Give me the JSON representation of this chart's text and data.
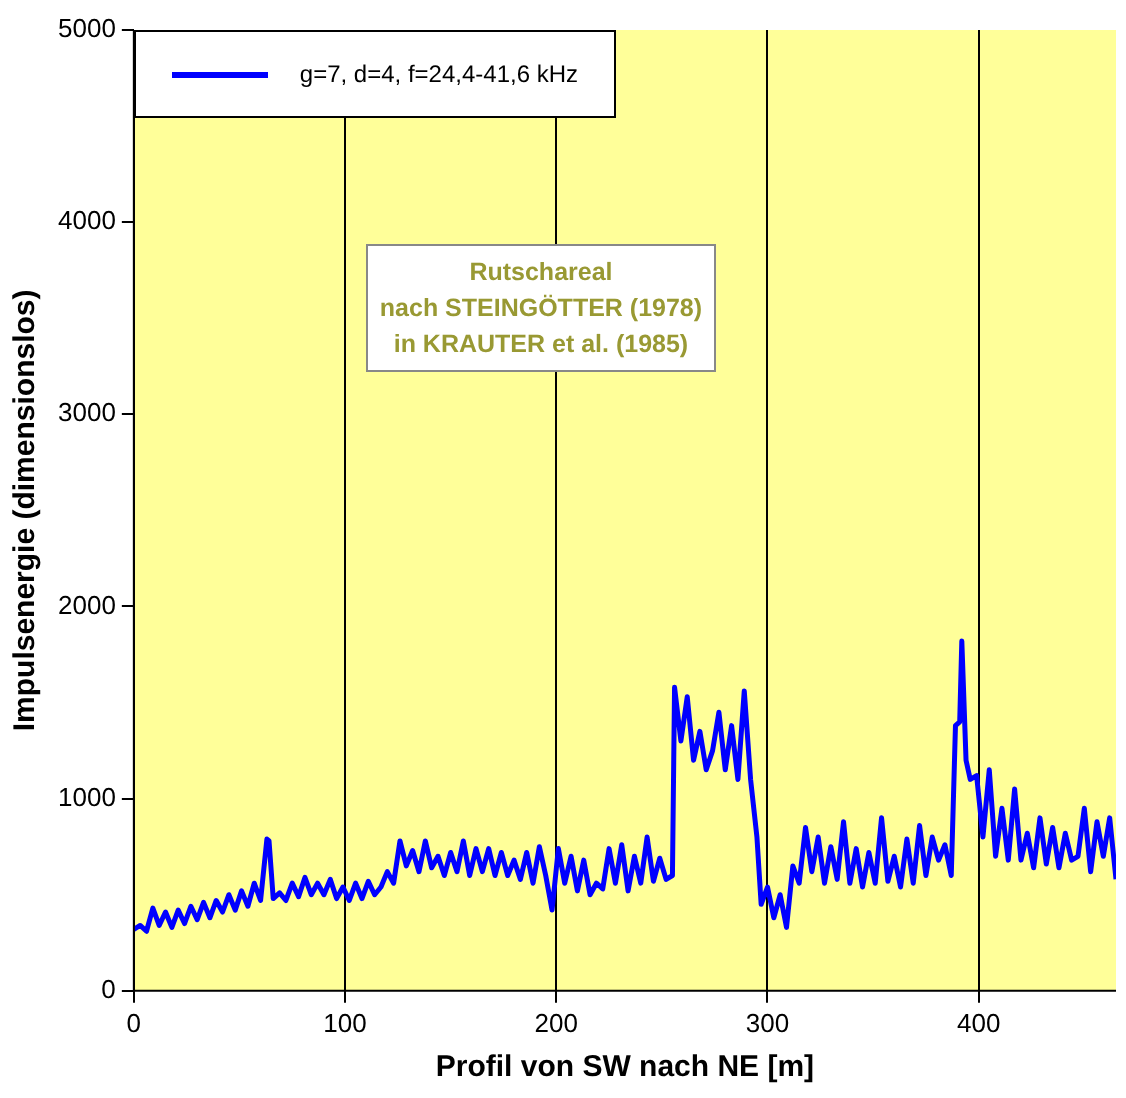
{
  "chart_data": {
    "type": "line",
    "xlabel": "Profil von SW nach NE [m]",
    "ylabel": "Impulsenergie (dimensionslos)",
    "annotations": [
      "Rutschareal\nnach STEINGÖTTER (1978)\nin KRAUTER et al. (1985)"
    ],
    "x": [
      0,
      3,
      6,
      9,
      12,
      15,
      18,
      21,
      24,
      27,
      30,
      33,
      36,
      39,
      42,
      45,
      48,
      51,
      54,
      57,
      60,
      63,
      64,
      66,
      69,
      72,
      75,
      78,
      81,
      84,
      87,
      90,
      93,
      96,
      99,
      102,
      105,
      108,
      111,
      114,
      117,
      120,
      123,
      126,
      129,
      132,
      135,
      138,
      141,
      144,
      147,
      150,
      153,
      156,
      159,
      162,
      165,
      168,
      171,
      174,
      177,
      180,
      183,
      186,
      189,
      192,
      195,
      198,
      201,
      204,
      207,
      210,
      213,
      216,
      219,
      222,
      225,
      228,
      231,
      234,
      237,
      240,
      243,
      246,
      249,
      252,
      255,
      256,
      259,
      262,
      265,
      268,
      271,
      274,
      277,
      280,
      283,
      286,
      289,
      292,
      295,
      297,
      300,
      303,
      306,
      309,
      312,
      315,
      318,
      321,
      324,
      327,
      330,
      333,
      336,
      339,
      342,
      345,
      348,
      351,
      354,
      357,
      360,
      363,
      366,
      369,
      372,
      375,
      378,
      381,
      384,
      387,
      389,
      391,
      392,
      394,
      396,
      399,
      402,
      405,
      408,
      411,
      414,
      417,
      420,
      423,
      426,
      429,
      432,
      435,
      438,
      441,
      444,
      447,
      450,
      453,
      456,
      459,
      462,
      465
    ],
    "series": [
      {
        "name": "g=7, d=4, f=24,4-41,6 kHz",
        "color": "#0000ff",
        "values": [
          320,
          340,
          310,
          430,
          340,
          410,
          330,
          420,
          350,
          440,
          370,
          460,
          380,
          470,
          410,
          500,
          420,
          520,
          440,
          560,
          470,
          790,
          780,
          480,
          510,
          470,
          560,
          490,
          590,
          500,
          560,
          500,
          580,
          480,
          540,
          470,
          560,
          480,
          570,
          500,
          540,
          620,
          560,
          780,
          650,
          730,
          620,
          780,
          640,
          700,
          600,
          720,
          620,
          780,
          600,
          740,
          620,
          740,
          600,
          720,
          600,
          680,
          580,
          720,
          560,
          750,
          600,
          420,
          740,
          560,
          700,
          520,
          680,
          500,
          560,
          530,
          740,
          560,
          760,
          520,
          700,
          560,
          800,
          570,
          690,
          580,
          600,
          1580,
          1300,
          1530,
          1200,
          1350,
          1150,
          1250,
          1450,
          1150,
          1380,
          1100,
          1560,
          1100,
          800,
          450,
          540,
          380,
          500,
          330,
          650,
          560,
          850,
          620,
          800,
          560,
          750,
          580,
          880,
          560,
          740,
          540,
          720,
          560,
          900,
          570,
          700,
          540,
          790,
          560,
          860,
          600,
          800,
          680,
          760,
          600,
          1380,
          1400,
          1820,
          1200,
          1100,
          1120,
          800,
          1150,
          700,
          950,
          680,
          1050,
          680,
          820,
          640,
          900,
          660,
          850,
          640,
          820,
          680,
          700,
          950,
          620,
          880,
          700,
          900,
          580
        ]
      }
    ],
    "xlim": [
      0,
      465
    ],
    "ylim": [
      0,
      5000
    ],
    "xticks": [
      0,
      100,
      200,
      300,
      400
    ],
    "yticks": [
      0,
      1000,
      2000,
      3000,
      4000,
      5000
    ],
    "grid": "x",
    "legend": "top left",
    "marker": "none",
    "line_style": "solid"
  }
}
